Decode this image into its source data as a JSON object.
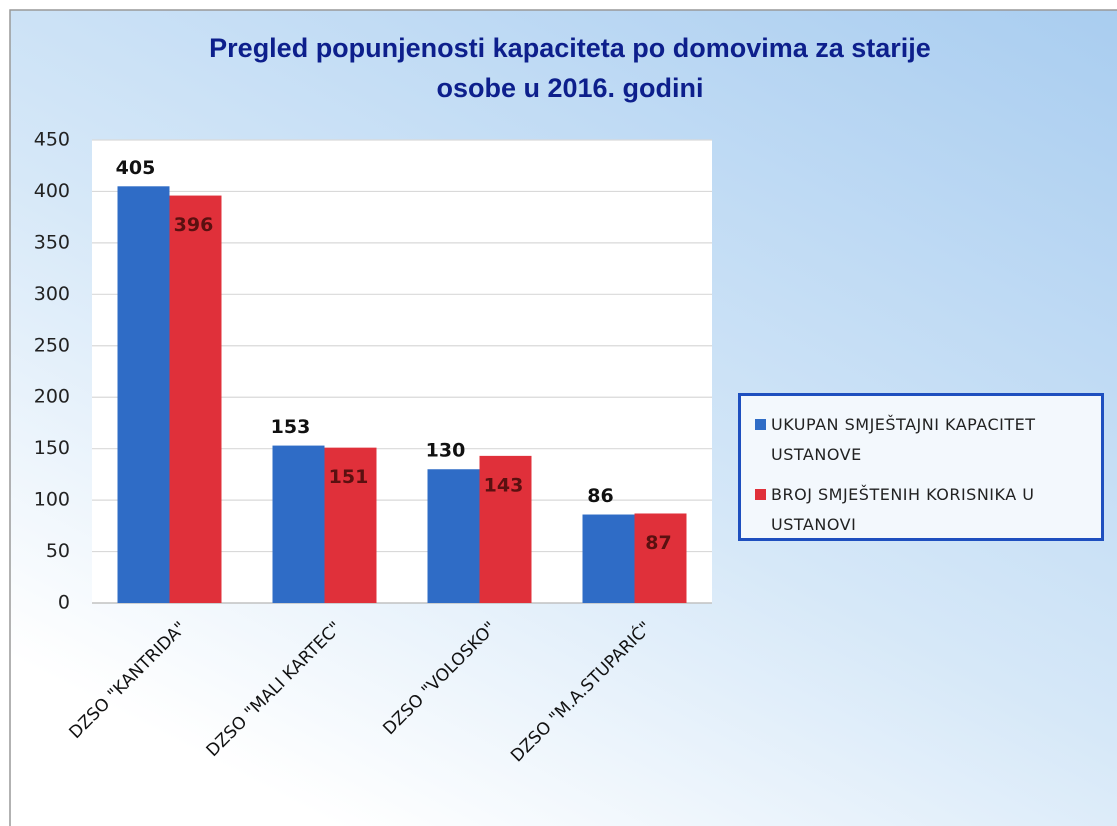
{
  "chart_data": {
    "type": "bar",
    "title": "Pregled popunjenosti kapaciteta po domovima za starije osobe u 2016. godini",
    "categories": [
      "DZSO \"KANTRIDA\"",
      "DZSO \"MALI KARTEC\"",
      "DZSO \"VOLOSKO\"",
      "DZSO \"M.A.STUPARIĆ\""
    ],
    "series": [
      {
        "name": "UKUPAN SMJEŠTAJNI KAPACITET USTANOVE",
        "color": "#2f6cc6",
        "values": [
          405,
          153,
          130,
          86
        ]
      },
      {
        "name": "BROJ SMJEŠTENIH KORISNIKA U USTANOVI",
        "color": "#e0303a",
        "values": [
          396,
          151,
          143,
          87
        ]
      }
    ],
    "ylim": [
      0,
      450
    ],
    "yticks": [
      0,
      50,
      100,
      150,
      200,
      250,
      300,
      350,
      400,
      450
    ],
    "grid": true,
    "legend": "right"
  }
}
